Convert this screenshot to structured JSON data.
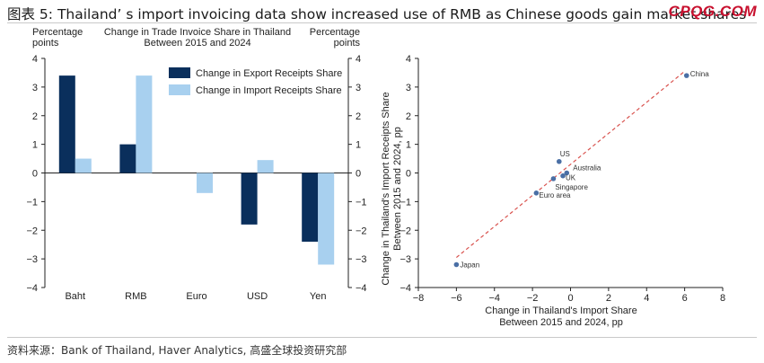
{
  "header": {
    "title": "图表 5: Thailand’ s import invoicing data show increased use of RMB as Chinese goods gain market shares",
    "brand": "CPQG.COM"
  },
  "footer": {
    "source": "资料来源：Bank of Thailand, Haver Analytics, 高盛全球投资研究部"
  },
  "chart_data": [
    {
      "type": "bar",
      "title": "Change in Trade Invoice Share in Thailand Between 2015 and 2024",
      "title_lines": [
        "Change in Trade Invoice Share in Thailand",
        "Between 2015 and 2024"
      ],
      "ylabel_left_lines": [
        "Percentage",
        "points"
      ],
      "ylabel_right_lines": [
        "Percentage",
        "points"
      ],
      "categories": [
        "Baht",
        "RMB",
        "Euro",
        "USD",
        "Yen"
      ],
      "series": [
        {
          "name": "Change in Export Receipts Share",
          "values": [
            3.4,
            1.0,
            null,
            -1.8,
            -2.4
          ],
          "color": "#0a2f5c"
        },
        {
          "name": "Change in Import Receipts Share",
          "values": [
            0.5,
            3.4,
            -0.7,
            0.45,
            -3.2
          ],
          "color": "#a8d0ef"
        }
      ],
      "ylim": [
        -4,
        4
      ],
      "yticks": [
        "4",
        "3",
        "2",
        "1",
        "0",
        "−1",
        "−2",
        "−3",
        "−4"
      ],
      "legend_position": "top-right",
      "grid": false
    },
    {
      "type": "scatter",
      "xlabel_lines": [
        "Change in Thailand's Import Share",
        "Between 2015 and 2024, pp"
      ],
      "ylabel_lines": [
        "Change in Thailand's Import Receipts Share",
        "Between 2015 and 2024, pp"
      ],
      "xlim": [
        -8,
        8
      ],
      "ylim": [
        -4,
        4
      ],
      "xticks": [
        "−8",
        "−6",
        "−4",
        "−2",
        "0",
        "2",
        "4",
        "6",
        "8"
      ],
      "yticks": [
        "4",
        "3",
        "2",
        "1",
        "0",
        "−1",
        "−2",
        "−3",
        "−4"
      ],
      "points": [
        {
          "label": "China",
          "x": 6.1,
          "y": 3.4
        },
        {
          "label": "US",
          "x": -0.6,
          "y": 0.4
        },
        {
          "label": "Australia",
          "x": -0.2,
          "y": 0.0
        },
        {
          "label": "UK",
          "x": -0.4,
          "y": -0.1
        },
        {
          "label": "Singapore",
          "x": -0.9,
          "y": -0.2
        },
        {
          "label": "Euro area",
          "x": -1.8,
          "y": -0.7
        },
        {
          "label": "Japan",
          "x": -6.0,
          "y": -3.2
        }
      ],
      "trendline": {
        "x": [
          -6,
          6
        ],
        "y": [
          -2.95,
          3.55
        ],
        "style": "dashed",
        "color": "#d9534f"
      },
      "point_color": "#4a6fa5",
      "grid": false
    }
  ]
}
